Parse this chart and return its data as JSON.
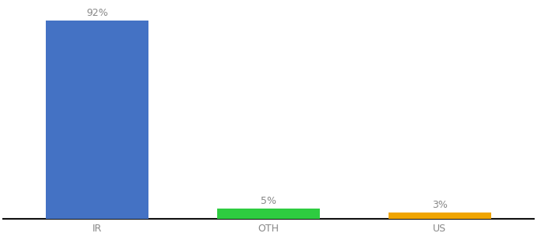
{
  "categories": [
    "IR",
    "OTH",
    "US"
  ],
  "values": [
    92,
    5,
    3
  ],
  "bar_colors": [
    "#4472c4",
    "#2ecc40",
    "#f0a500"
  ],
  "labels": [
    "92%",
    "5%",
    "3%"
  ],
  "background_color": "#ffffff",
  "ylim": [
    0,
    100
  ],
  "label_fontsize": 9,
  "tick_fontsize": 9,
  "bar_width": 0.6,
  "label_color": "#888888",
  "tick_color": "#888888",
  "spine_color": "#111111"
}
